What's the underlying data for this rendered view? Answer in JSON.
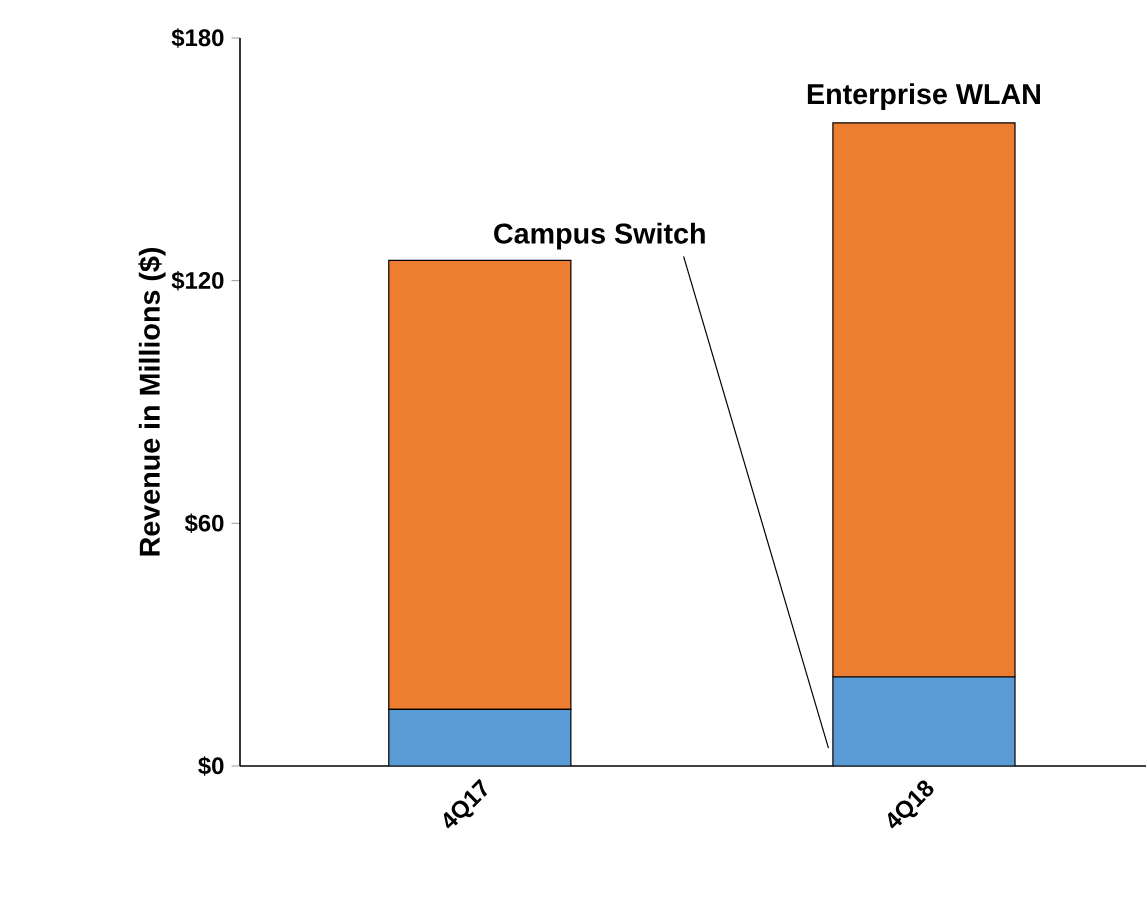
{
  "chart_data": {
    "type": "bar",
    "stacked": true,
    "ylabel": "Revenue in Millions ($)",
    "categories": [
      "4Q17",
      "4Q18"
    ],
    "series": [
      {
        "name": "Campus Switch",
        "color": "#5b9bd5",
        "values": [
          14,
          22
        ]
      },
      {
        "name": "Enterprise WLAN",
        "color": "#ed7d31",
        "values": [
          111,
          137
        ]
      }
    ],
    "ylim": [
      0,
      180
    ],
    "yticks": [
      {
        "value": 0,
        "label": "$0"
      },
      {
        "value": 60,
        "label": "$60"
      },
      {
        "value": 120,
        "label": "$120"
      },
      {
        "value": 180,
        "label": "$180"
      }
    ],
    "grid": false
  }
}
